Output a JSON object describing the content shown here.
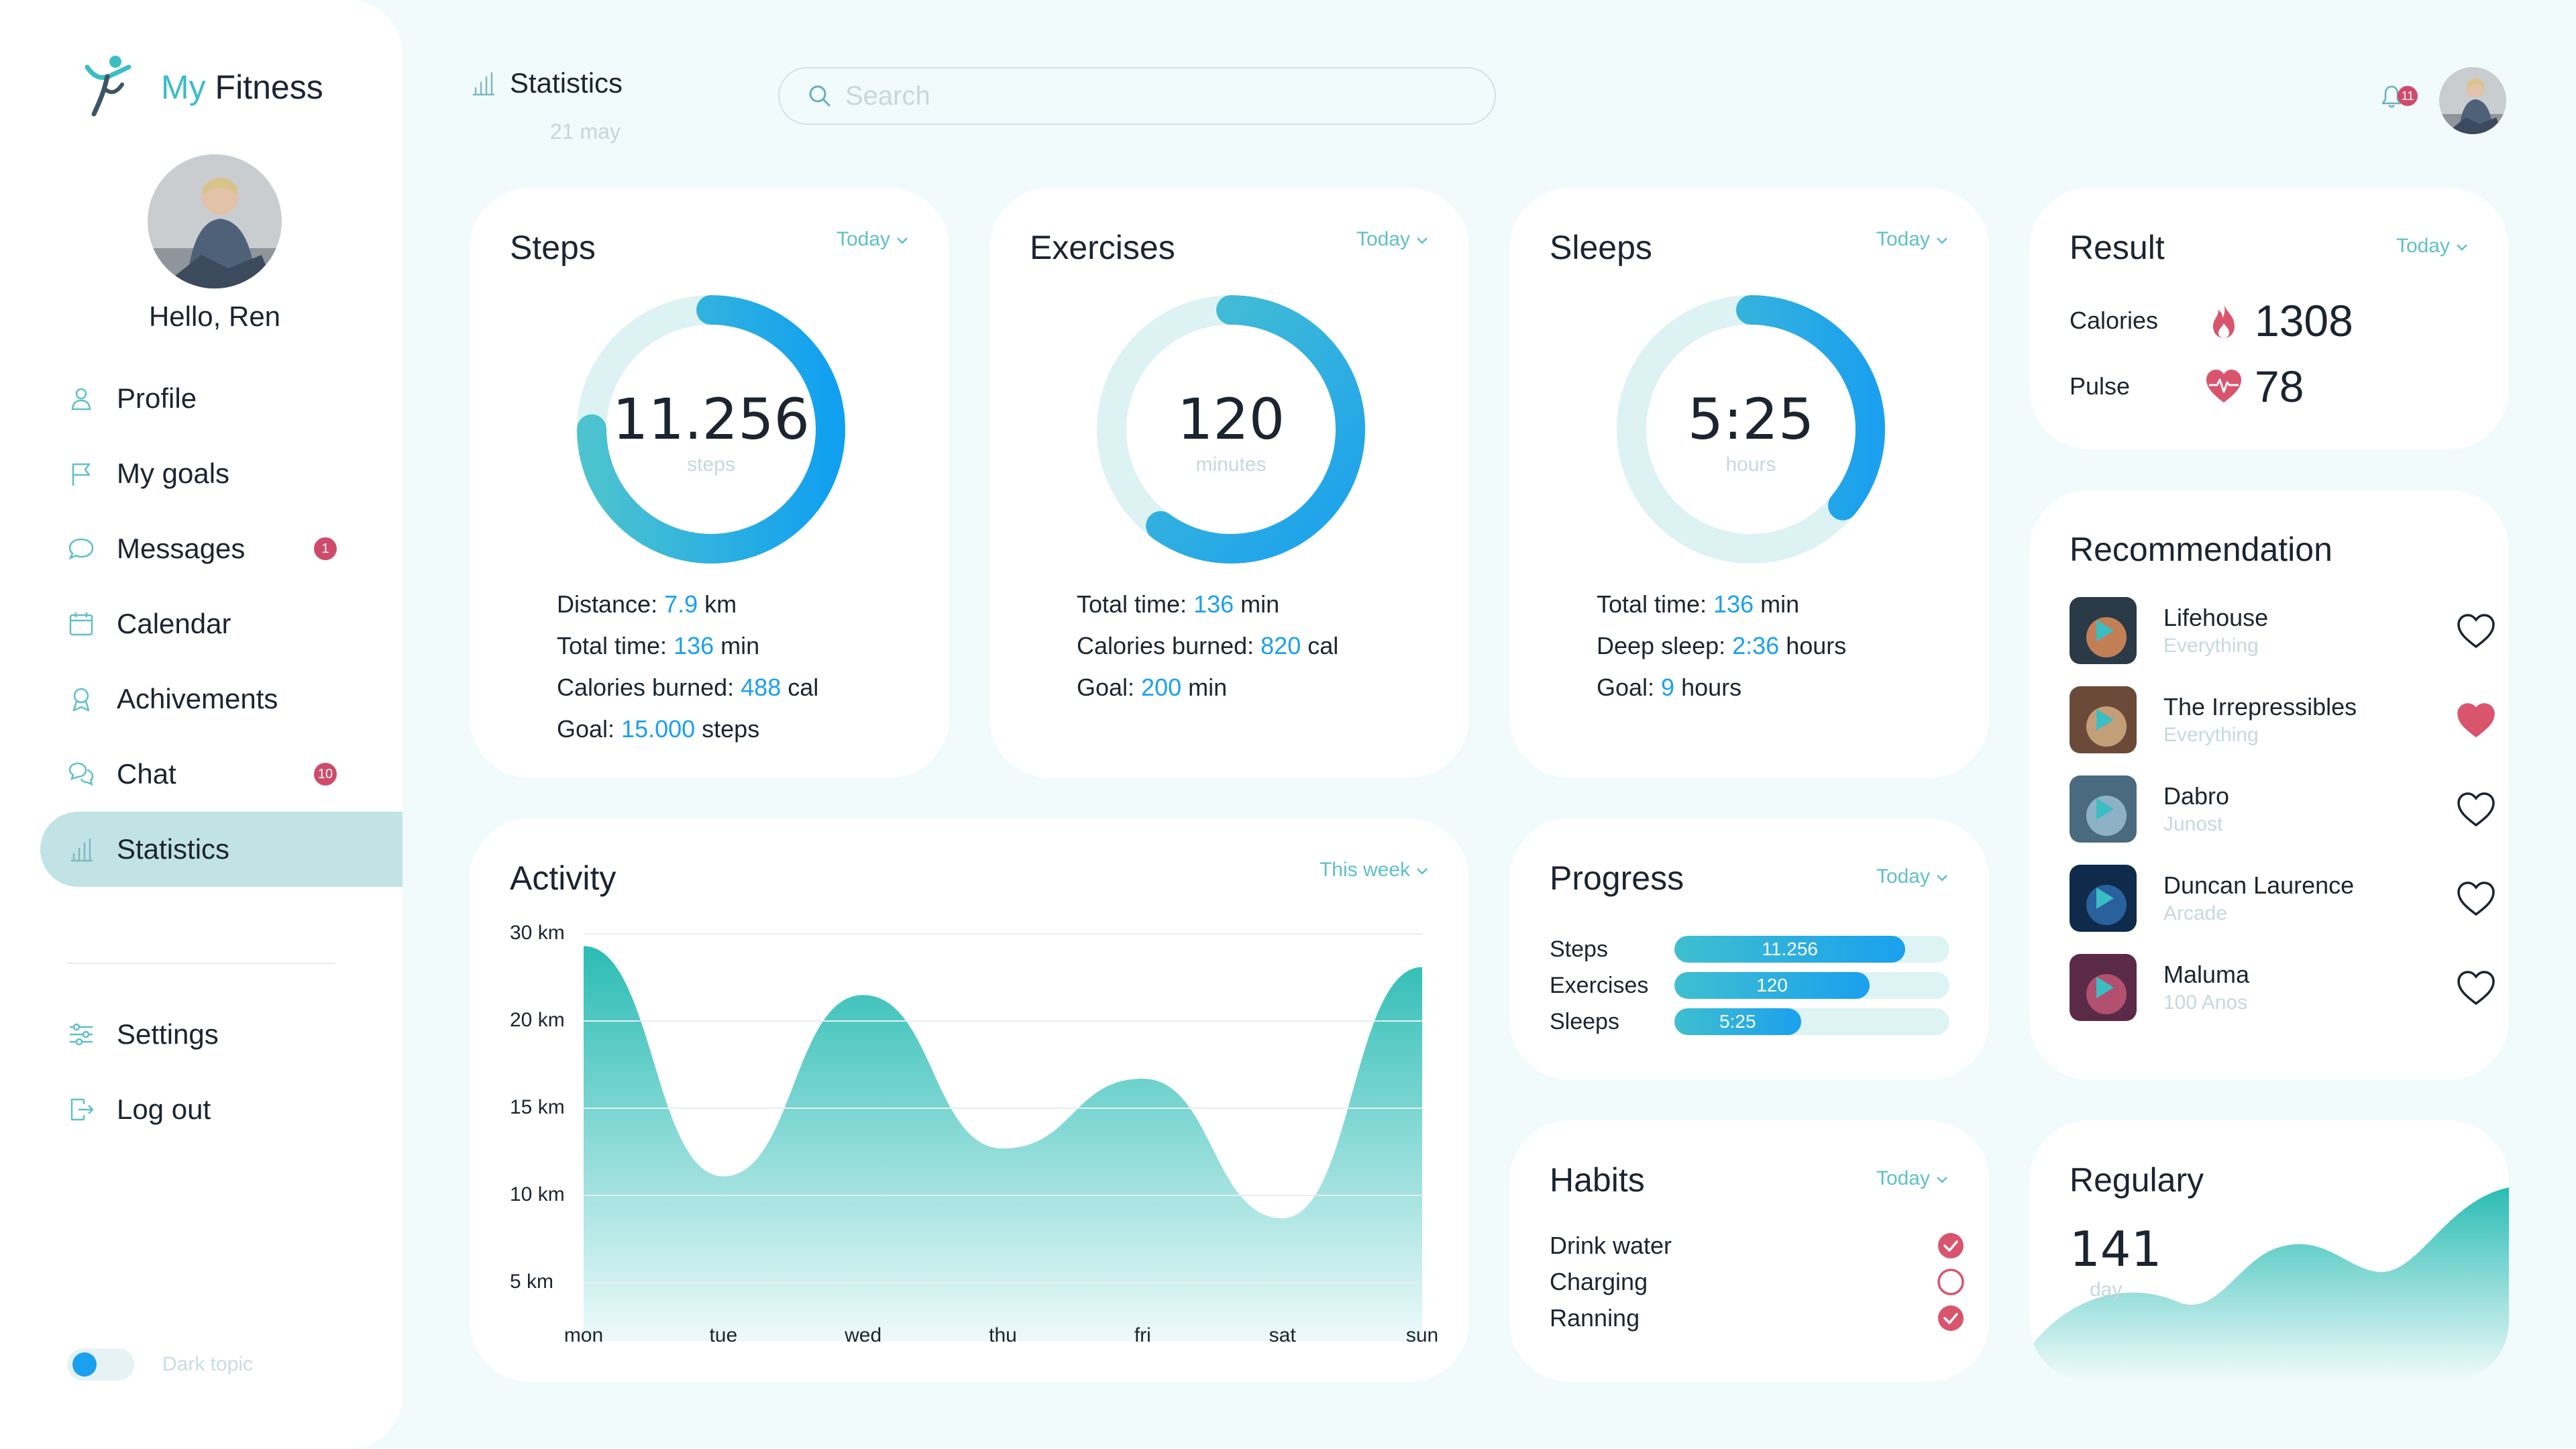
{
  "app": {
    "name_accent": "My",
    "name_rest": " Fitness"
  },
  "user": {
    "greeting": "Hello, Ren"
  },
  "sidebar": {
    "items": [
      {
        "label": "Profile",
        "icon": "user-icon"
      },
      {
        "label": "My goals",
        "icon": "flag-icon"
      },
      {
        "label": "Messages",
        "icon": "message-icon",
        "badge": "1"
      },
      {
        "label": "Calendar",
        "icon": "calendar-icon"
      },
      {
        "label": "Achivements",
        "icon": "award-icon"
      },
      {
        "label": "Chat",
        "icon": "chat-icon",
        "badge": "10"
      },
      {
        "label": "Statistics",
        "icon": "bar-chart-icon",
        "active": true
      }
    ],
    "bottom": [
      {
        "label": "Settings",
        "icon": "sliders-icon"
      },
      {
        "label": "Log out",
        "icon": "logout-icon"
      }
    ],
    "dark_toggle_label": "Dark topic"
  },
  "header": {
    "title": "Statistics",
    "date": "21 may",
    "search_placeholder": "Search",
    "notification_count": "11"
  },
  "steps_card": {
    "title": "Steps",
    "period": "Today",
    "value": "11.256",
    "unit": "steps",
    "progress": 0.75,
    "stats": [
      {
        "label": "Distance: ",
        "value": "7.9",
        "suffix": " km"
      },
      {
        "label": "Total time: ",
        "value": "136",
        "suffix": " min"
      },
      {
        "label": "Calories burned: ",
        "value": "488",
        "suffix": " cal"
      },
      {
        "label": "Goal: ",
        "value": "15.000",
        "suffix": " steps"
      }
    ]
  },
  "exercises_card": {
    "title": "Exercises",
    "period": "Today",
    "value": "120",
    "unit": "minutes",
    "progress": 0.6,
    "stats": [
      {
        "label": "Total time: ",
        "value": "136",
        "suffix": " min"
      },
      {
        "label": "Calories burned: ",
        "value": "820",
        "suffix": " cal"
      },
      {
        "label": "Goal: ",
        "value": "200",
        "suffix": " min"
      }
    ]
  },
  "sleeps_card": {
    "title": "Sleeps",
    "period": "Today",
    "value": "5:25",
    "unit": "hours",
    "progress": 0.36,
    "stats": [
      {
        "label": "Total time: ",
        "value": "136",
        "suffix": " min"
      },
      {
        "label": "Deep sleep: ",
        "value": "2:36",
        "suffix": " hours"
      },
      {
        "label": "Goal: ",
        "value": "9",
        "suffix": " hours"
      }
    ]
  },
  "result_card": {
    "title": "Result",
    "period": "Today",
    "calories_label": "Calories",
    "calories": "1308",
    "pulse_label": "Pulse",
    "pulse": "78"
  },
  "recommendation": {
    "title": "Recommendation",
    "items": [
      {
        "title": "Lifehouse",
        "sub": "Everything",
        "liked": false
      },
      {
        "title": "The Irrepressibles",
        "sub": "Everything",
        "liked": true
      },
      {
        "title": "Dabro",
        "sub": "Junost",
        "liked": false
      },
      {
        "title": "Duncan Laurence",
        "sub": "Arcade",
        "liked": false
      },
      {
        "title": "Maluma",
        "sub": "100 Anos",
        "liked": false
      }
    ]
  },
  "progress_card": {
    "title": "Progress",
    "period": "Today",
    "rows": [
      {
        "label": "Steps",
        "value": "11.256",
        "fraction": 0.84
      },
      {
        "label": "Exercises",
        "value": "120",
        "fraction": 0.71
      },
      {
        "label": "Sleeps",
        "value": "5:25",
        "fraction": 0.46
      }
    ]
  },
  "habits_card": {
    "title": "Habits",
    "period": "Today",
    "rows": [
      {
        "label": "Drink water",
        "done": true
      },
      {
        "label": "Charging",
        "done": false
      },
      {
        "label": "Ranning",
        "done": true
      }
    ]
  },
  "regulary_card": {
    "title": "Regulary",
    "value": "141",
    "unit": "day"
  },
  "activity_card": {
    "title": "Activity",
    "period": "This week"
  },
  "chart_data": {
    "type": "area",
    "categories": [
      "mon",
      "tue",
      "wed",
      "thu",
      "fri",
      "sat",
      "sun"
    ],
    "y_ticks": [
      "30 km",
      "20 km",
      "15 km",
      "10 km",
      "5 km"
    ],
    "series": [
      {
        "values": [
          29.5,
          13,
          26,
          15,
          20,
          10,
          28
        ]
      }
    ],
    "grid": true,
    "colors": {
      "fill_top": "#2bbcb4",
      "fill_bottom": "#eefafb"
    }
  },
  "colors": {
    "accent": "#3bbdc4",
    "blue": "#1aa0ee",
    "badge": "#cf4b6b"
  }
}
